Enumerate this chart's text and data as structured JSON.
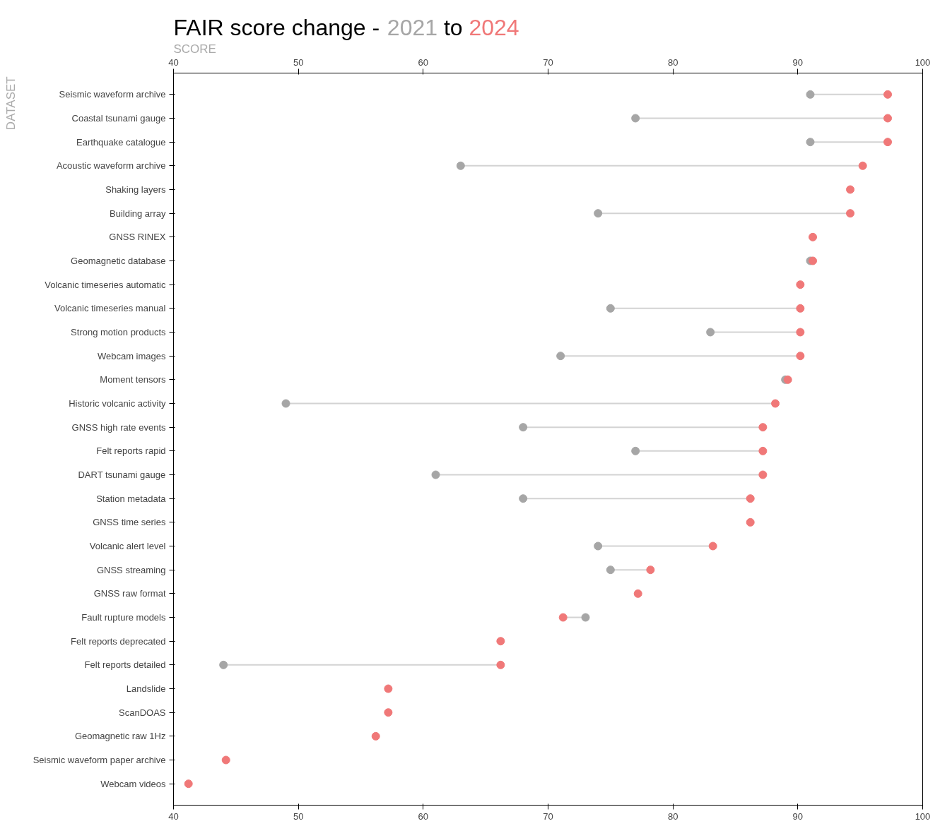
{
  "chart_data": {
    "type": "scatter",
    "title": "FAIR score change - 2021 to 2024",
    "xlabel": "SCORE",
    "ylabel": "DATASET",
    "categories": [
      "Seismic waveform archive",
      "Coastal tsunami gauge",
      "Earthquake catalogue",
      "Acoustic waveform archive",
      "Shaking layers",
      "Building array",
      "GNSS RINEX",
      "Geomagnetic database",
      "Volcanic timeseries automatic",
      "Volcanic timeseries manual",
      "Strong motion products",
      "Webcam images",
      "Moment tensors",
      "Historic volcanic activity",
      "GNSS high rate events",
      "Felt reports rapid",
      "DART tsunami gauge",
      "Station metadata",
      "GNSS time series",
      "Volcanic alert level",
      "GNSS streaming",
      "GNSS raw format",
      "Fault rupture models",
      "Felt reports deprecated",
      "Felt reports detailed",
      "Landslide",
      "ScanDOAS",
      "Geomagnetic raw 1Hz",
      "Seismic waveform paper archive",
      "Webcam videos"
    ],
    "orientation": "horizontal",
    "series": [
      {
        "color": "#a6a6a6",
        "values": [
          91,
          77,
          91,
          63,
          null,
          74,
          null,
          91,
          null,
          75,
          83,
          71,
          89,
          49,
          68,
          77,
          61,
          68,
          null,
          74,
          75,
          null,
          73,
          null,
          44,
          null,
          null,
          null,
          null,
          null
        ]
      },
      {
        "color": "#f07878",
        "values": [
          97.2,
          97.2,
          97.2,
          95.2,
          94.2,
          94.2,
          91.2,
          91.2,
          90.2,
          90.2,
          90.2,
          90.2,
          89.2,
          88.2,
          87.2,
          87.2,
          87.2,
          86.2,
          86.2,
          83.2,
          78.2,
          77.2,
          71.2,
          66.2,
          66.2,
          57.2,
          57.2,
          56.2,
          44.2,
          41.2
        ]
      }
    ],
    "xlim": [
      40,
      100
    ],
    "xticks": [
      40,
      50,
      60,
      70,
      80,
      90,
      100
    ],
    "x2lim": [
      40,
      100
    ],
    "x2ticks": [
      40,
      50,
      60,
      70,
      80,
      90,
      100
    ],
    "marker": "circle",
    "grid": false
  }
}
